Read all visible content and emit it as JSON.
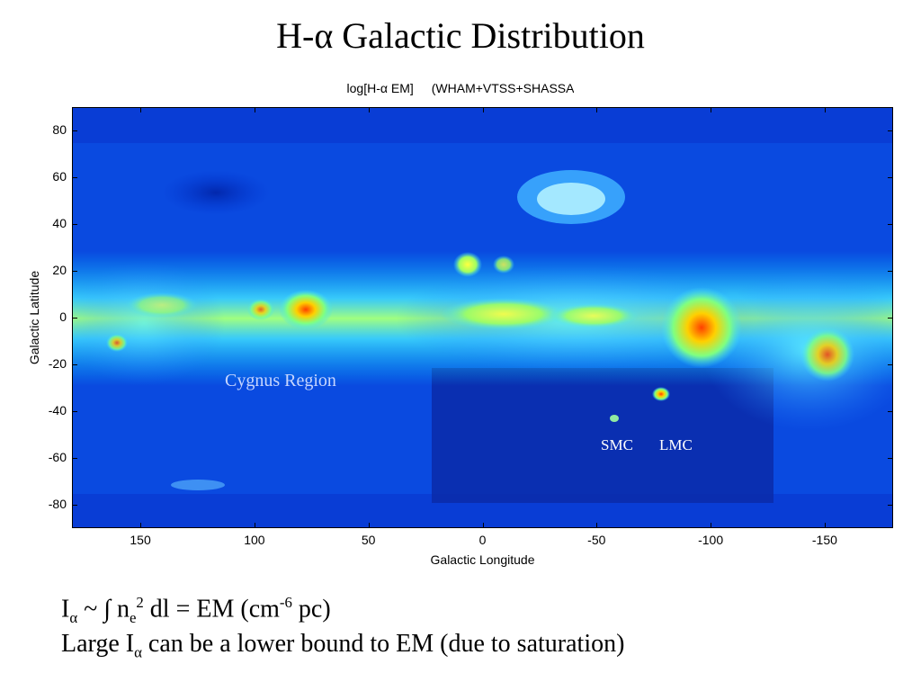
{
  "slide": {
    "title": "H-α  Galactic Distribution"
  },
  "map": {
    "title_main": "log[H-α EM]",
    "title_sources": "(WHAM+VTSS+SHASSA",
    "xlabel": "Galactic Longitude",
    "ylabel": "Galactic Latitude",
    "x_range": [
      180,
      -180
    ],
    "y_range": [
      -90,
      90
    ],
    "x_ticks": [
      "150",
      "100",
      "50",
      "0",
      "-50",
      "-100",
      "-150"
    ],
    "x_tick_values": [
      150,
      100,
      50,
      0,
      -50,
      -100,
      -150
    ],
    "y_ticks": [
      "80",
      "60",
      "40",
      "20",
      "0",
      "-20",
      "-40",
      "-60",
      "-80"
    ],
    "y_tick_values": [
      80,
      60,
      40,
      20,
      0,
      -20,
      -40,
      -60,
      -80
    ],
    "colormap": [
      "#00008f",
      "#0040ff",
      "#00c0ff",
      "#80ff80",
      "#ffff00",
      "#ff8000",
      "#c00000"
    ],
    "annotations": {
      "cygnus": "Cygnus Region",
      "smc": "SMC",
      "lmc": "LMC"
    }
  },
  "text": {
    "eq_I": "I",
    "eq_alpha": "α",
    "eq_mid": " ~ ∫ n",
    "eq_e": "e",
    "eq_2": "2",
    "eq_rest": " dl = EM (cm",
    "eq_exp": "-6",
    "eq_end": " pc)",
    "line2_a": "Large I",
    "line2_alpha": "α",
    "line2_b": " can be a lower bound to EM (due to saturation)"
  }
}
